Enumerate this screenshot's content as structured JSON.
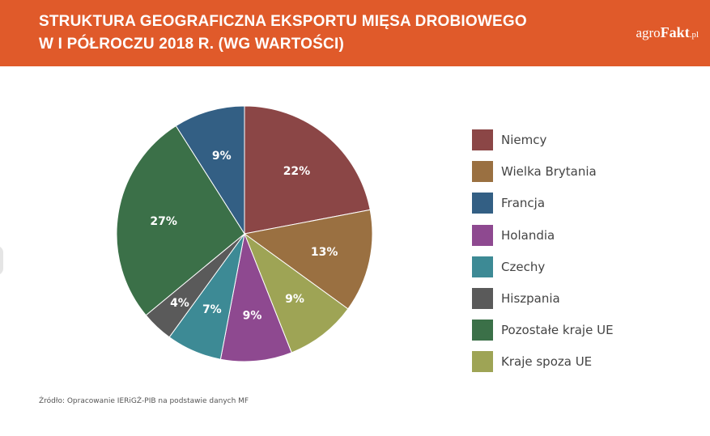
{
  "header": {
    "title_line1": "STRUKTURA GEOGRAFICZNA EKSPORTU MIĘSA DROBIOWEGO",
    "title_line2": "W I PÓŁROCZU 2018 R. (WG WARTOŚCI)",
    "brand_part1": "agro",
    "brand_part2": "Fakt",
    "brand_part3": ".pl",
    "background_color": "#e05a2a"
  },
  "chart_data": {
    "type": "pie",
    "title": "STRUKTURA GEOGRAFICZNA EKSPORTU MIĘSA DROBIOWEGO W I PÓŁROCZU 2018 R. (WG WARTOŚCI)",
    "legend_position": "right",
    "slices": [
      {
        "label": "Niemcy",
        "value": 22,
        "display": "22%",
        "color": "#8b4646"
      },
      {
        "label": "Wielka Brytania",
        "value": 13,
        "display": "13%",
        "color": "#9a7041"
      },
      {
        "label": "Kraje spoza UE",
        "value": 9,
        "display": "9%",
        "color": "#9ea455"
      },
      {
        "label": "Holandia",
        "value": 9,
        "display": "9%",
        "color": "#8e4990"
      },
      {
        "label": "Czechy",
        "value": 7,
        "display": "7%",
        "color": "#3d8a95"
      },
      {
        "label": "Hiszpania",
        "value": 4,
        "display": "4%",
        "color": "#5a5a5a"
      },
      {
        "label": "Pozostałe kraje UE",
        "value": 27,
        "display": "27%",
        "color": "#3b7048"
      },
      {
        "label": "Francja",
        "value": 9,
        "display": "9%",
        "color": "#335f84"
      }
    ],
    "legend": [
      {
        "label": "Niemcy",
        "color": "#8b4646"
      },
      {
        "label": "Wielka Brytania",
        "color": "#9a7041"
      },
      {
        "label": "Francja",
        "color": "#335f84"
      },
      {
        "label": "Holandia",
        "color": "#8e4990"
      },
      {
        "label": "Czechy",
        "color": "#3d8a95"
      },
      {
        "label": "Hiszpania",
        "color": "#5a5a5a"
      },
      {
        "label": "Pozostałe kraje UE",
        "color": "#3b7048"
      },
      {
        "label": "Kraje spoza UE",
        "color": "#9ea455"
      }
    ]
  },
  "footer": {
    "source": "Źródło: Opracowanie IERiGŻ-PIB na podstawie danych MF"
  }
}
